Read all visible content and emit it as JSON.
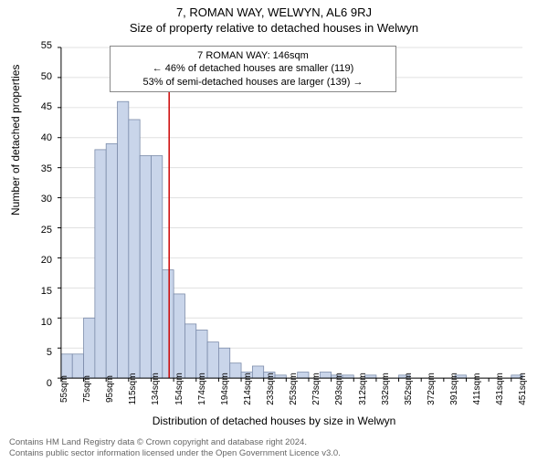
{
  "titles": {
    "main": "7, ROMAN WAY, WELWYN, AL6 9RJ",
    "sub": "Size of property relative to detached houses in Welwyn"
  },
  "annotation": {
    "line1": "7 ROMAN WAY: 146sqm",
    "line2": "← 46% of detached houses are smaller (119)",
    "line3": "53% of semi-detached houses are larger (139) →"
  },
  "chart": {
    "type": "histogram",
    "ylabel": "Number of detached properties",
    "xlabel": "Distribution of detached houses by size in Welwyn",
    "ylim": [
      0,
      55
    ],
    "ytick_step": 5,
    "xticks": [
      "55sqm",
      "75sqm",
      "95sqm",
      "115sqm",
      "134sqm",
      "154sqm",
      "174sqm",
      "194sqm",
      "214sqm",
      "233sqm",
      "253sqm",
      "273sqm",
      "293sqm",
      "312sqm",
      "332sqm",
      "352sqm",
      "372sqm",
      "391sqm",
      "411sqm",
      "431sqm",
      "451sqm"
    ],
    "values": [
      4,
      4,
      10,
      38,
      39,
      46,
      43,
      37,
      37,
      18,
      14,
      9,
      8,
      6,
      5,
      2.5,
      1,
      2,
      1,
      0.5,
      0,
      1,
      0,
      1,
      0.5,
      0.5,
      0,
      0.5,
      0,
      0,
      0.5,
      0,
      0,
      0,
      0,
      0.5,
      0,
      0,
      0,
      0,
      0.5
    ],
    "bar_fill": "#c9d5ea",
    "bar_stroke": "#7a8aa8",
    "grid_color": "#e0e0e0",
    "axis_color": "#000000",
    "marker_line_color": "#cc0000",
    "marker_x": 146,
    "x_min": 50,
    "x_max": 460,
    "background": "#ffffff"
  },
  "footer": {
    "line1": "Contains HM Land Registry data © Crown copyright and database right 2024.",
    "line2": "Contains public sector information licensed under the Open Government Licence v3.0."
  }
}
